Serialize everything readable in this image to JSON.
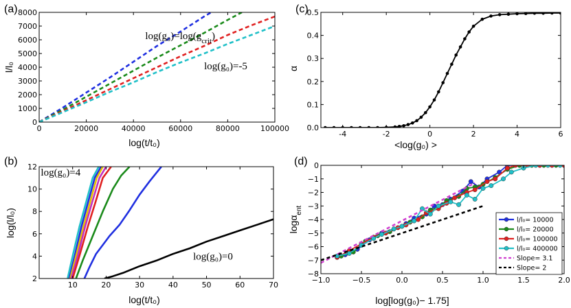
{
  "chart_data": [
    {
      "id": "a",
      "panel_label": "(a)",
      "type": "line",
      "xlabel": "log(t/t₀)",
      "ylabel": "l/l₀",
      "xlim": [
        0,
        100000
      ],
      "ylim": [
        0,
        8000
      ],
      "xticks": [
        0,
        20000,
        40000,
        60000,
        80000,
        100000
      ],
      "yticks": [
        0,
        1000,
        2000,
        3000,
        4000,
        5000,
        6000,
        7000,
        8000
      ],
      "series": [
        {
          "color": "#1f2fe0",
          "dash": true,
          "x": [
            0,
            10000,
            20000,
            30000,
            40000,
            50000,
            60000,
            70000,
            73000
          ],
          "y": [
            0,
            1050,
            2150,
            3250,
            4400,
            5550,
            6600,
            7700,
            8000
          ]
        },
        {
          "color": "#1a8a1a",
          "dash": true,
          "x": [
            0,
            10000,
            20000,
            30000,
            40000,
            50000,
            60000,
            70000,
            80000,
            86000
          ],
          "y": [
            0,
            900,
            1850,
            2800,
            3750,
            4700,
            5600,
            6500,
            7450,
            8000
          ]
        },
        {
          "color": "#e02020",
          "dash": true,
          "x": [
            0,
            10000,
            20000,
            30000,
            40000,
            50000,
            60000,
            70000,
            80000,
            90000,
            100000
          ],
          "y": [
            0,
            800,
            1600,
            2400,
            3200,
            4000,
            4800,
            5550,
            6350,
            7050,
            7700
          ]
        },
        {
          "color": "#20c0c8",
          "dash": true,
          "x": [
            0,
            10000,
            20000,
            30000,
            40000,
            50000,
            60000,
            70000,
            80000,
            90000,
            100000
          ],
          "y": [
            0,
            720,
            1450,
            2200,
            2900,
            3650,
            4350,
            5000,
            5700,
            6350,
            7000
          ]
        }
      ],
      "annotations": [
        {
          "text": "log(g₀)=log(g",
          "sub": "crit",
          "tail": ")",
          "x": 45000,
          "y": 6050
        },
        {
          "text": "log(g₀)=-5",
          "x": 70000,
          "y": 3850
        }
      ]
    },
    {
      "id": "b",
      "panel_label": "(b)",
      "type": "line",
      "xlabel": "log(t/t₀)",
      "ylabel": "log(l/l₀)",
      "xlim": [
        0,
        70
      ],
      "ylim": [
        2,
        12
      ],
      "xticks": [
        10,
        20,
        30,
        40,
        50,
        60,
        70
      ],
      "yticks": [
        2,
        4,
        6,
        8,
        10,
        12
      ],
      "series": [
        {
          "color": "#20c0c8",
          "x": [
            8.5,
            10,
            12,
            14,
            16,
            17.8
          ],
          "y": [
            2,
            4,
            6.6,
            8.8,
            11,
            12
          ]
        },
        {
          "color": "#1f2fe0",
          "x": [
            9,
            10.6,
            12.6,
            14.6,
            16.6,
            18.5
          ],
          "y": [
            2,
            4,
            6.6,
            8.8,
            11,
            12
          ]
        },
        {
          "color": "#e8c000",
          "x": [
            9.3,
            11,
            13.2,
            15.2,
            17.2,
            19
          ],
          "y": [
            2,
            4,
            6.6,
            8.8,
            11,
            12
          ]
        },
        {
          "color": "#c030c0",
          "x": [
            9.6,
            11.5,
            13.7,
            15.8,
            18,
            20
          ],
          "y": [
            2,
            4,
            6.6,
            8.8,
            11,
            12
          ]
        },
        {
          "color": "#e02020",
          "x": [
            10,
            12,
            14.5,
            16.8,
            19,
            21.5
          ],
          "y": [
            2,
            4,
            6.6,
            8.8,
            11,
            12
          ]
        },
        {
          "color": "#1a8a1a",
          "x": [
            11,
            13,
            16,
            19,
            22,
            24.5,
            27
          ],
          "y": [
            2,
            3.6,
            5.8,
            8,
            10,
            11.2,
            12
          ]
        },
        {
          "color": "#1f2fe0",
          "x": [
            13.5,
            15,
            17,
            19,
            21,
            24,
            27,
            30,
            33,
            36.5
          ],
          "y": [
            2,
            3,
            4.2,
            5,
            5.8,
            6.8,
            8.1,
            9.5,
            10.7,
            12
          ]
        },
        {
          "color": "#000000",
          "x": [
            19.5,
            22,
            25,
            30,
            35,
            40,
            45,
            50,
            55,
            60,
            65,
            70
          ],
          "y": [
            2,
            2.2,
            2.5,
            3.1,
            3.6,
            4.2,
            4.7,
            5.3,
            5.8,
            6.3,
            6.8,
            7.3
          ]
        }
      ],
      "annotations": [
        {
          "text": "log(g₀)=4",
          "x": 0.5,
          "y": 11.2
        },
        {
          "text": "log(g₀)=0",
          "x": 46,
          "y": 3.7
        }
      ]
    },
    {
      "id": "c",
      "panel_label": "(c)",
      "type": "line",
      "xlabel": "<log(g₀) >",
      "ylabel": "α",
      "xlim": [
        -5,
        6
      ],
      "ylim": [
        0,
        0.5
      ],
      "xticks": [
        -4,
        -2,
        0,
        2,
        4,
        6
      ],
      "yticks": [
        0,
        0.1,
        0.2,
        0.3,
        0.4,
        0.5
      ],
      "ytick_labels": [
        "0.0",
        "0.1",
        "0.2",
        "0.3",
        "0.4",
        "0.5"
      ],
      "series": [
        {
          "color": "#000000",
          "markers": true,
          "x": [
            -4.8,
            -4.4,
            -4.0,
            -3.6,
            -3.2,
            -2.8,
            -2.4,
            -2.0,
            -1.6,
            -1.4,
            -1.2,
            -1.0,
            -0.8,
            -0.6,
            -0.4,
            -0.2,
            0.0,
            0.2,
            0.4,
            0.6,
            0.8,
            1.0,
            1.2,
            1.4,
            1.6,
            1.8,
            2.0,
            2.4,
            2.8,
            3.2,
            3.6,
            4.0,
            4.4,
            4.8,
            5.2,
            5.6,
            6.0
          ],
          "y": [
            0,
            0,
            0,
            0,
            0,
            0,
            0,
            0.001,
            0.003,
            0.005,
            0.008,
            0.013,
            0.02,
            0.03,
            0.045,
            0.065,
            0.09,
            0.12,
            0.155,
            0.195,
            0.235,
            0.275,
            0.315,
            0.35,
            0.385,
            0.415,
            0.44,
            0.47,
            0.484,
            0.49,
            0.492,
            0.494,
            0.495,
            0.496,
            0.496,
            0.497,
            0.497
          ]
        }
      ]
    },
    {
      "id": "d",
      "panel_label": "(d)",
      "type": "line",
      "xlabel": "log[log(g₀)− 1.75]",
      "ylabel": "logα",
      "ylabel_sub": "ent",
      "xlim": [
        -1.0,
        2.0
      ],
      "ylim": [
        -8,
        0
      ],
      "xticks": [
        -1.0,
        -0.5,
        0.0,
        0.5,
        1.0,
        1.5,
        2.0
      ],
      "xtick_labels": [
        "−1.0",
        "−0.5",
        "0.0",
        "0.5",
        "1.0",
        "1.5",
        "2.0"
      ],
      "yticks": [
        -8,
        -7,
        -6,
        -5,
        -4,
        -3,
        -2,
        -1,
        0
      ],
      "ytick_labels": [
        "−8",
        "−7",
        "−6",
        "−5",
        "−4",
        "−3",
        "−2",
        "−1",
        "0"
      ],
      "legend_position": "lower-right",
      "series": [
        {
          "name": "l/l₀= 10000",
          "color": "#1f2fe0",
          "markers": true,
          "x": [
            -0.7,
            -0.55,
            -0.4,
            -0.25,
            -0.1,
            0.05,
            0.15,
            0.3,
            0.4,
            0.5,
            0.6,
            0.75,
            0.85,
            0.95,
            1.05,
            1.2,
            1.3,
            1.45,
            1.55,
            1.7,
            1.85,
            2.0
          ],
          "y": [
            -6.6,
            -6.2,
            -5.5,
            -5.0,
            -4.7,
            -4.3,
            -3.9,
            -3.6,
            -3.0,
            -2.9,
            -2.5,
            -1.9,
            -1.2,
            -1.6,
            -1.0,
            -0.5,
            0,
            0,
            0,
            0,
            0,
            0
          ]
        },
        {
          "name": "l/l₀= 20000",
          "color": "#1a8a1a",
          "markers": true,
          "x": [
            -0.75,
            -0.6,
            -0.45,
            -0.3,
            -0.15,
            0.0,
            0.1,
            0.25,
            0.35,
            0.45,
            0.55,
            0.7,
            0.8,
            0.9,
            1.0,
            1.15,
            1.3,
            1.45,
            1.6,
            1.75,
            1.9,
            2.0
          ],
          "y": [
            -6.7,
            -6.4,
            -5.6,
            -5.2,
            -4.9,
            -4.5,
            -4.2,
            -3.8,
            -3.3,
            -3.1,
            -2.6,
            -2.3,
            -1.7,
            -1.6,
            -1.4,
            -0.9,
            -0.3,
            0,
            0,
            0,
            0,
            0
          ]
        },
        {
          "name": "l/l₀= 100000",
          "color": "#e02020",
          "markers": true,
          "x": [
            -0.8,
            -0.65,
            -0.5,
            -0.35,
            -0.2,
            -0.05,
            0.05,
            0.2,
            0.3,
            0.45,
            0.55,
            0.65,
            0.8,
            0.9,
            1.05,
            1.15,
            1.3,
            1.4,
            1.55,
            1.7,
            1.85,
            2.0
          ],
          "y": [
            -6.8,
            -6.3,
            -5.8,
            -5.3,
            -5.0,
            -4.6,
            -4.4,
            -4.0,
            -3.5,
            -3.2,
            -2.8,
            -2.4,
            -2.0,
            -1.8,
            -1.2,
            -1.0,
            -0.2,
            0,
            0,
            0,
            0,
            0
          ]
        },
        {
          "name": "l/l₀= 400000",
          "color": "#20c0c8",
          "markers": true,
          "x": [
            -0.8,
            -0.65,
            -0.5,
            -0.35,
            -0.25,
            -0.1,
            0.0,
            0.15,
            0.25,
            0.35,
            0.45,
            0.6,
            0.7,
            0.8,
            0.9,
            1.0,
            1.1,
            1.25,
            1.35,
            1.5,
            1.65,
            1.8,
            1.95
          ],
          "y": [
            -6.7,
            -6.5,
            -5.9,
            -5.4,
            -5.1,
            -4.7,
            -4.5,
            -4.1,
            -3.2,
            -3.6,
            -3.0,
            -2.7,
            -2.9,
            -2.2,
            -2.5,
            -1.7,
            -1.5,
            -1.0,
            -0.5,
            -0.2,
            0,
            0,
            0
          ]
        },
        {
          "name": "Slope= 3.1",
          "color": "#d040d0",
          "dash": true,
          "x": [
            -1.0,
            0.9
          ],
          "y": [
            -7.2,
            -1.3
          ]
        },
        {
          "name": "Slope= 2",
          "color": "#000000",
          "dash": true,
          "x": [
            -1.0,
            1.0
          ],
          "y": [
            -7.0,
            -3.0
          ]
        }
      ]
    }
  ]
}
